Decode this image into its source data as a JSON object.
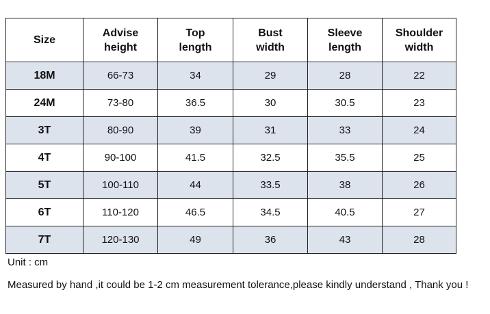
{
  "table": {
    "header": [
      "Size",
      "Advise height",
      "Top length",
      "Bust width",
      "Sleeve length",
      "Shoulder width"
    ],
    "rows": [
      [
        "18M",
        "66-73",
        "34",
        "29",
        "28",
        "22"
      ],
      [
        "24M",
        "73-80",
        "36.5",
        "30",
        "30.5",
        "23"
      ],
      [
        "3T",
        "80-90",
        "39",
        "31",
        "33",
        "24"
      ],
      [
        "4T",
        "90-100",
        "41.5",
        "32.5",
        "35.5",
        "25"
      ],
      [
        "5T",
        "100-110",
        "44",
        "33.5",
        "38",
        "26"
      ],
      [
        "6T",
        "110-120",
        "46.5",
        "34.5",
        "40.5",
        "27"
      ],
      [
        "7T",
        "120-130",
        "49",
        "36",
        "43",
        "28"
      ]
    ]
  },
  "notes": {
    "unit": "Unit : cm",
    "tolerance": "Measured by hand ,it could be 1-2 cm measurement tolerance,please kindly understand , Thank you !"
  }
}
